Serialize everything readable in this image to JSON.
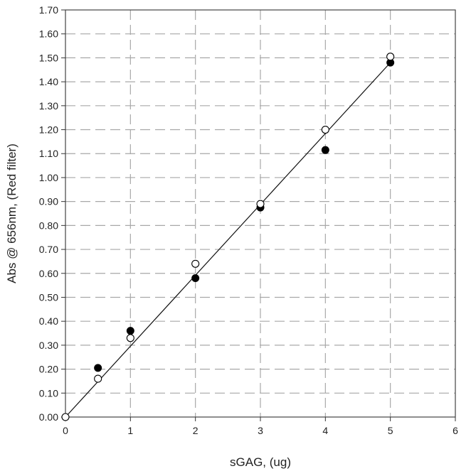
{
  "chart_data": {
    "type": "scatter",
    "xlabel": "sGAG, (ug)",
    "ylabel": "Abs @ 656nm, (Red filter)",
    "xlim": [
      0,
      6
    ],
    "ylim": [
      0,
      1.7
    ],
    "x_ticks": [
      "0",
      "1",
      "2",
      "3",
      "4",
      "5",
      "6"
    ],
    "y_ticks": [
      "0.00",
      "0.10",
      "0.20",
      "0.30",
      "0.40",
      "0.50",
      "0.60",
      "0.70",
      "0.80",
      "0.90",
      "1.00",
      "1.10",
      "1.20",
      "1.30",
      "1.40",
      "1.50",
      "1.60",
      "1.70"
    ],
    "grid": true,
    "series": [
      {
        "marker": "filled-circle",
        "color": "#000000",
        "points": [
          {
            "x": 0.5,
            "y": 0.205
          },
          {
            "x": 1,
            "y": 0.36
          },
          {
            "x": 2,
            "y": 0.58
          },
          {
            "x": 3,
            "y": 0.875
          },
          {
            "x": 4,
            "y": 1.115
          },
          {
            "x": 5,
            "y": 1.48
          }
        ]
      },
      {
        "marker": "open-circle",
        "color": "#000000",
        "points": [
          {
            "x": 0,
            "y": 0.0
          },
          {
            "x": 0.5,
            "y": 0.16
          },
          {
            "x": 1,
            "y": 0.33
          },
          {
            "x": 2,
            "y": 0.64
          },
          {
            "x": 3,
            "y": 0.89
          },
          {
            "x": 4,
            "y": 1.2
          },
          {
            "x": 5,
            "y": 1.505
          }
        ]
      }
    ],
    "trendline": {
      "type": "linear",
      "from": [
        0,
        0
      ],
      "to": [
        5,
        1.48
      ]
    }
  }
}
